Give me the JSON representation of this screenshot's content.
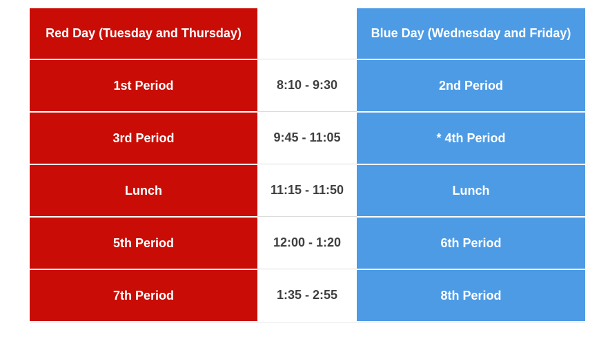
{
  "schedule": {
    "red_day_header": "Red Day (Tuesday and Thursday)",
    "blue_day_header": "Blue Day (Wednesday and Friday)",
    "rows": [
      {
        "red_period": "1st Period",
        "time": "8:10 - 9:30",
        "blue_period": "2nd Period"
      },
      {
        "red_period": "3rd Period",
        "time": "9:45 - 11:05",
        "blue_period": "* 4th Period"
      },
      {
        "red_period": "Lunch",
        "time": "11:15 - 11:50",
        "blue_period": "Lunch"
      },
      {
        "red_period": "5th Period",
        "time": "12:00 - 1:20",
        "blue_period": "6th Period"
      },
      {
        "red_period": "7th Period",
        "time": "1:35 - 2:55",
        "blue_period": "8th Period"
      }
    ]
  },
  "colors": {
    "red_day": "#c90d06",
    "blue_day": "#4d9be5",
    "time_text": "#3f3f3f",
    "row_separator": "#ffffff",
    "grid_line": "#dcdcdc"
  }
}
